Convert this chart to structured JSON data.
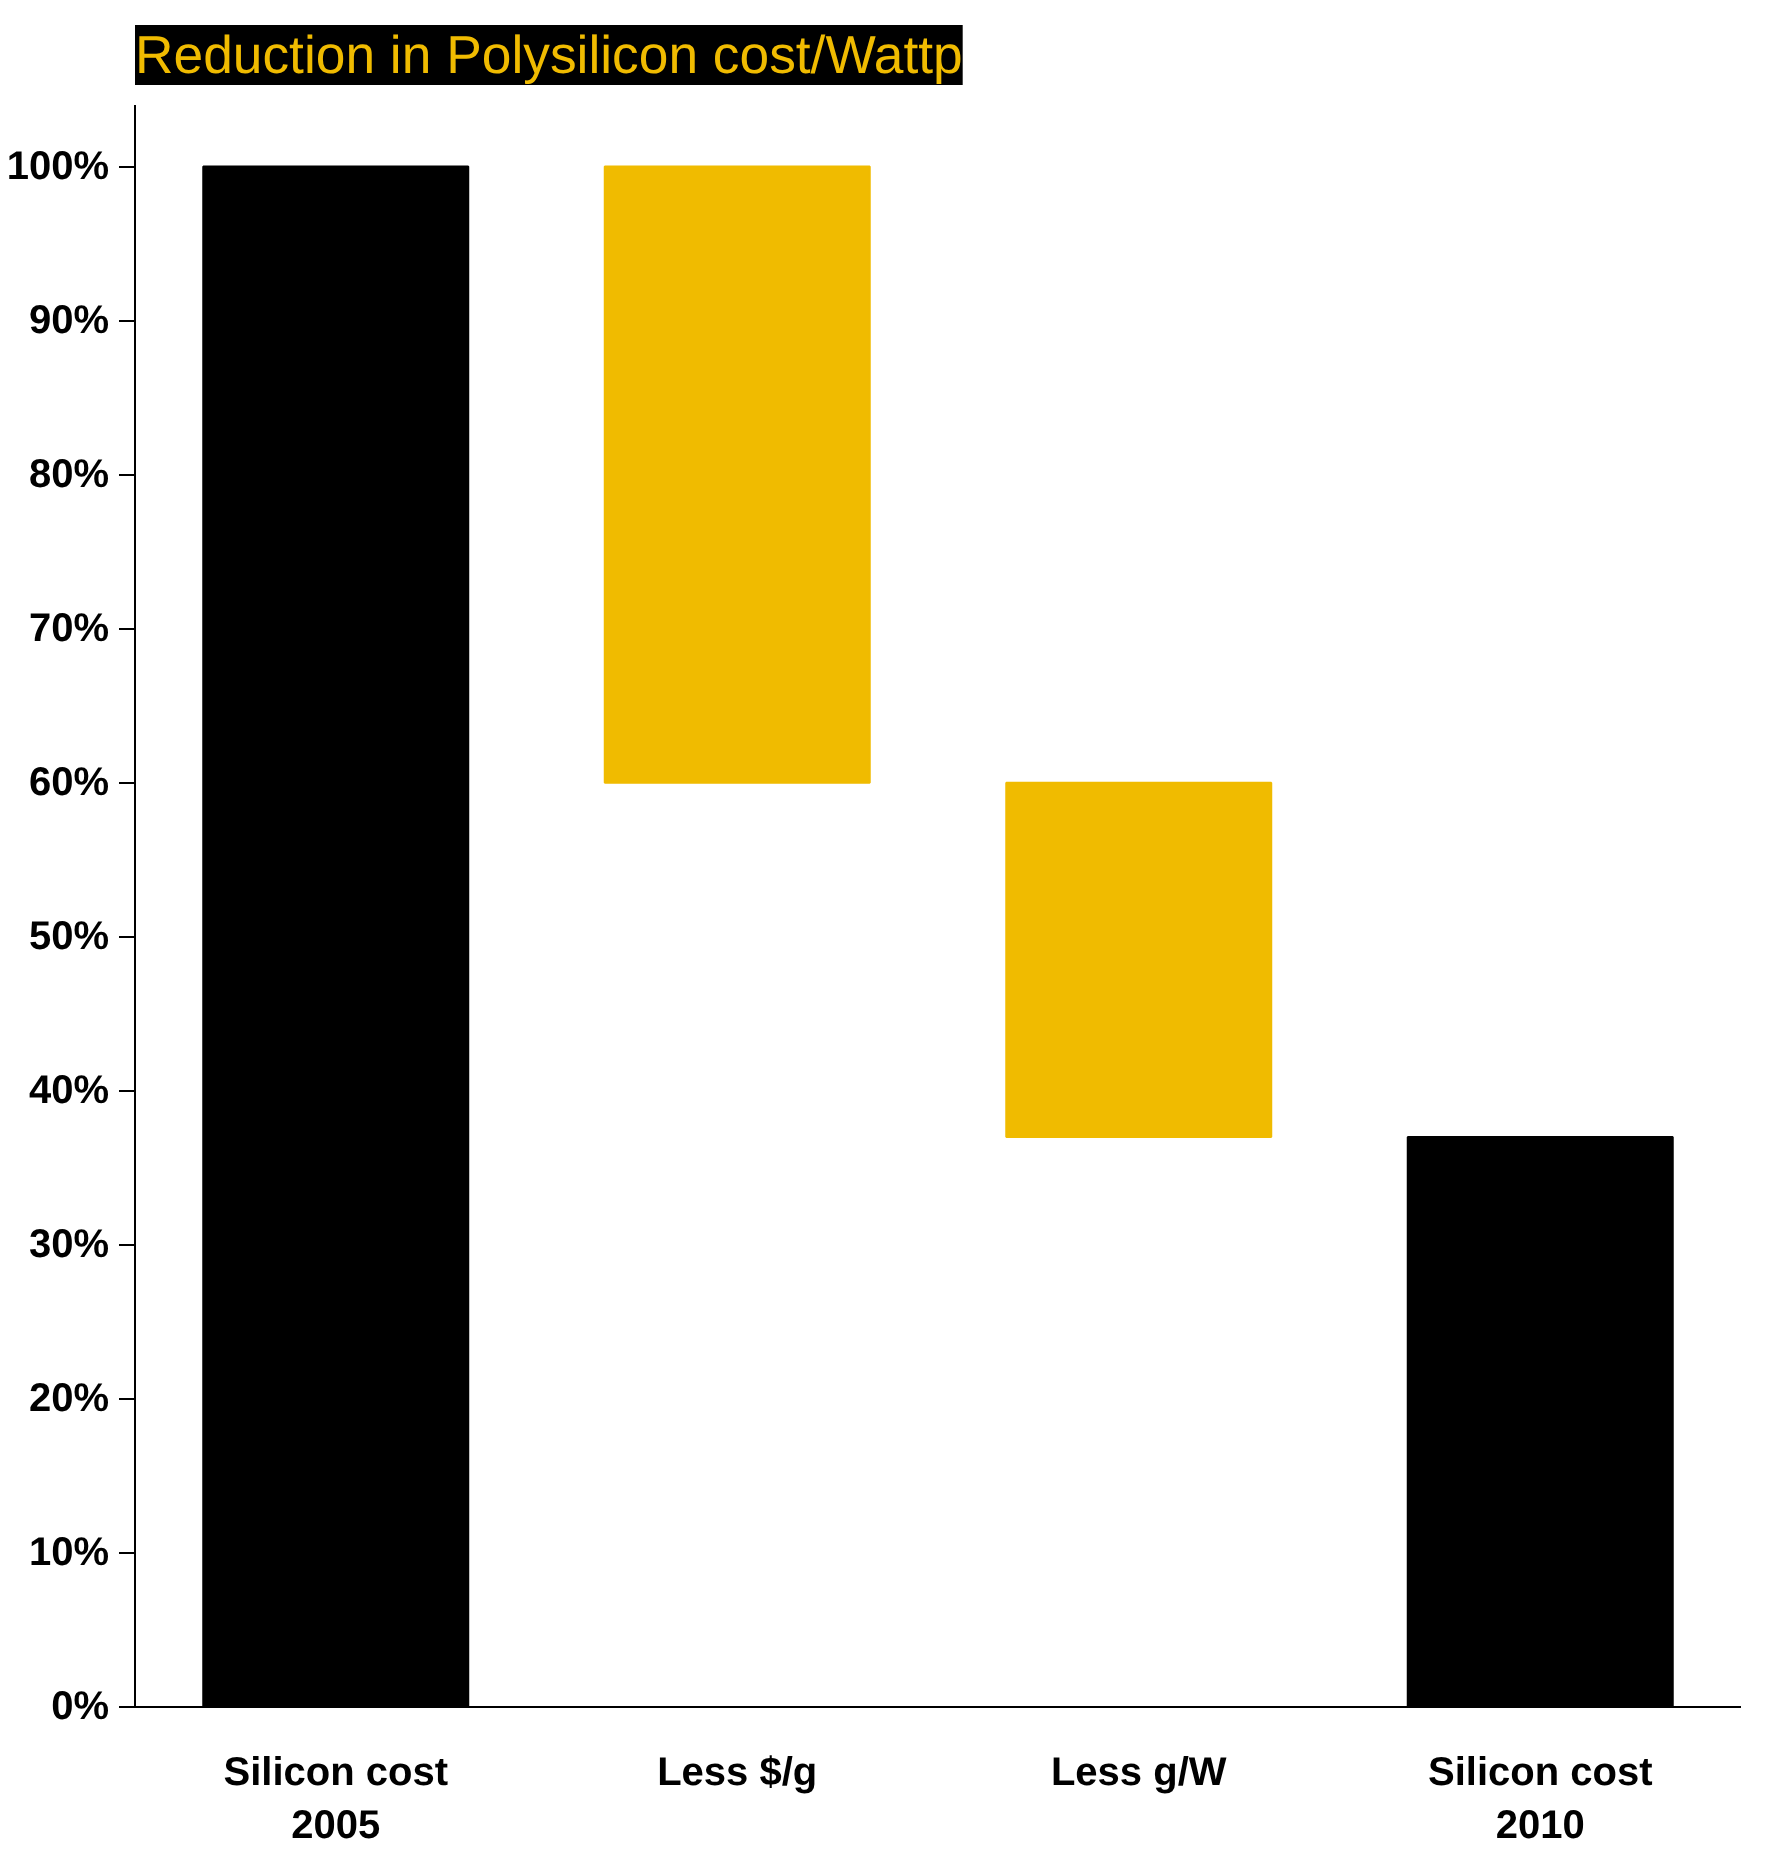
{
  "chart_data": {
    "type": "bar",
    "title": "Reduction in Polysilicon cost/Wattp",
    "categories": [
      "Silicon cost\n2005",
      "Less $/g",
      "Less g/W",
      "Silicon cost\n2010"
    ],
    "values": [
      100,
      40,
      23,
      37
    ],
    "base": [
      0,
      60,
      37,
      0
    ],
    "colors": [
      "#000000",
      "#f0bb00",
      "#f0bb00",
      "#000000"
    ],
    "ylim": [
      0,
      100
    ],
    "yticks": [
      {
        "value": 0,
        "label": "0%"
      },
      {
        "value": 10,
        "label": "10%"
      },
      {
        "value": 20,
        "label": "20%"
      },
      {
        "value": 30,
        "label": "30%"
      },
      {
        "value": 40,
        "label": "40%"
      },
      {
        "value": 50,
        "label": "50%"
      },
      {
        "value": 60,
        "label": "60%"
      },
      {
        "value": 70,
        "label": "70%"
      },
      {
        "value": 80,
        "label": "80%"
      },
      {
        "value": 90,
        "label": "90%"
      },
      {
        "value": 100,
        "label": "100%"
      }
    ],
    "grid": false
  }
}
